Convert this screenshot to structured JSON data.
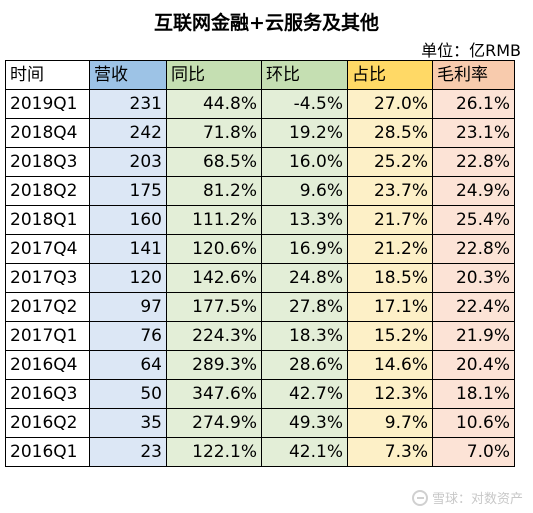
{
  "title": "互联网金融+云服务及其他",
  "unit": "单位：亿RMB",
  "columns": [
    "时间",
    "营收",
    "同比",
    "环比",
    "占比",
    "毛利率"
  ],
  "rows": [
    [
      "2019Q1",
      "231",
      "44.8%",
      "-4.5%",
      "27.0%",
      "26.1%"
    ],
    [
      "2018Q4",
      "242",
      "71.8%",
      "19.2%",
      "28.5%",
      "23.1%"
    ],
    [
      "2018Q3",
      "203",
      "68.5%",
      "16.0%",
      "25.2%",
      "22.8%"
    ],
    [
      "2018Q2",
      "175",
      "81.2%",
      "9.6%",
      "23.7%",
      "24.9%"
    ],
    [
      "2018Q1",
      "160",
      "111.2%",
      "13.3%",
      "21.7%",
      "25.4%"
    ],
    [
      "2017Q4",
      "141",
      "120.6%",
      "16.9%",
      "21.2%",
      "22.8%"
    ],
    [
      "2017Q3",
      "120",
      "142.6%",
      "24.8%",
      "18.5%",
      "20.3%"
    ],
    [
      "2017Q2",
      "97",
      "177.5%",
      "27.8%",
      "17.1%",
      "22.4%"
    ],
    [
      "2017Q1",
      "76",
      "224.3%",
      "18.3%",
      "15.2%",
      "21.9%"
    ],
    [
      "2016Q4",
      "64",
      "289.3%",
      "28.6%",
      "14.6%",
      "20.4%"
    ],
    [
      "2016Q3",
      "50",
      "347.6%",
      "42.7%",
      "12.3%",
      "18.1%"
    ],
    [
      "2016Q2",
      "35",
      "274.9%",
      "49.3%",
      "9.7%",
      "10.6%"
    ],
    [
      "2016Q1",
      "23",
      "122.1%",
      "42.1%",
      "7.3%",
      "7.0%"
    ]
  ],
  "watermark": "雪球：对数资产",
  "colors": {
    "revenue_header": "#9dc3e6",
    "revenue_cell": "#dce7f5",
    "growth_header": "#c5dfb2",
    "growth_cell": "#e3eed7",
    "share_header": "#ffd966",
    "share_cell": "#fdf0c7",
    "margin_header": "#f8cbad",
    "margin_cell": "#fce3d6"
  }
}
